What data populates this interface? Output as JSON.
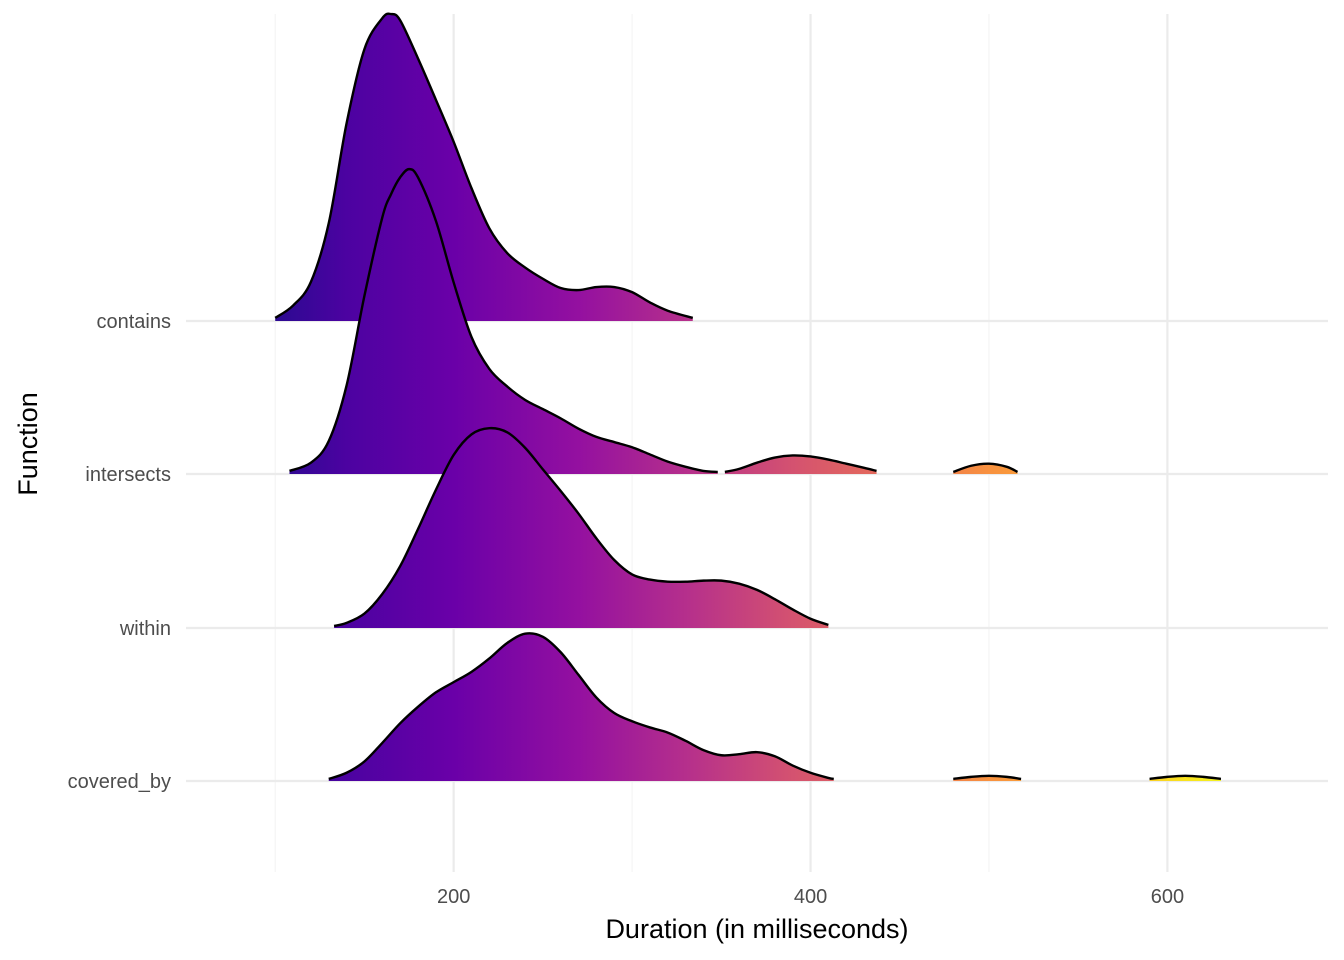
{
  "chart_data": {
    "type": "ridgeline",
    "title": "",
    "xlabel": "Duration (in milliseconds)",
    "ylabel": "Function",
    "xlim": [
      50,
      690
    ],
    "x_ticks": [
      200,
      400,
      600
    ],
    "x_tick_labels": [
      "200",
      "400",
      "600"
    ],
    "x_minor_ticks": [
      100,
      300,
      500
    ],
    "grid": true,
    "legend": "none",
    "fill": "gradient along x (plasma palette)",
    "color_scale": {
      "stops": [
        {
          "x": 100,
          "color": "#2b0a91"
        },
        {
          "x": 140,
          "color": "#4c02a1"
        },
        {
          "x": 200,
          "color": "#6a00a8"
        },
        {
          "x": 270,
          "color": "#9410a0"
        },
        {
          "x": 330,
          "color": "#b52f8c"
        },
        {
          "x": 390,
          "color": "#d45270"
        },
        {
          "x": 450,
          "color": "#e86f56"
        },
        {
          "x": 500,
          "color": "#f8913f"
        },
        {
          "x": 560,
          "color": "#fdb42f"
        },
        {
          "x": 610,
          "color": "#f9e21e"
        },
        {
          "x": 640,
          "color": "#f0f921"
        }
      ]
    },
    "categories": [
      "covered_by",
      "within",
      "intersects",
      "contains"
    ],
    "series": [
      {
        "name": "covered_by",
        "segments": [
          {
            "x": [
              130,
              140,
              150,
              160,
              170,
              180,
              190,
              200,
              210,
              220,
              230,
              240,
              250,
              260,
              270,
              280,
              290,
              300,
              310,
              320,
              330,
              340,
              350,
              360,
              370,
              380,
              390,
              400,
              410,
              413
            ],
            "density": [
              0.02,
              0.08,
              0.19,
              0.37,
              0.56,
              0.72,
              0.86,
              0.96,
              1.06,
              1.19,
              1.34,
              1.43,
              1.4,
              1.25,
              1.03,
              0.81,
              0.66,
              0.58,
              0.52,
              0.47,
              0.39,
              0.3,
              0.25,
              0.26,
              0.28,
              0.24,
              0.15,
              0.08,
              0.03,
              0.02
            ]
          },
          {
            "x": [
              480,
              490,
              500,
              510,
              518
            ],
            "density": [
              0.02,
              0.04,
              0.05,
              0.04,
              0.02
            ]
          },
          {
            "x": [
              590,
              600,
              610,
              620,
              630
            ],
            "density": [
              0.02,
              0.04,
              0.05,
              0.04,
              0.02
            ]
          }
        ]
      },
      {
        "name": "within",
        "segments": [
          {
            "x": [
              133,
              140,
              150,
              160,
              170,
              180,
              190,
              200,
              210,
              220,
              230,
              240,
              250,
              260,
              270,
              280,
              290,
              300,
              310,
              320,
              330,
              340,
              350,
              360,
              370,
              380,
              390,
              400,
              410
            ],
            "density": [
              0.02,
              0.05,
              0.14,
              0.33,
              0.6,
              0.96,
              1.34,
              1.68,
              1.88,
              1.94,
              1.9,
              1.75,
              1.54,
              1.33,
              1.11,
              0.87,
              0.66,
              0.52,
              0.47,
              0.45,
              0.45,
              0.46,
              0.46,
              0.43,
              0.37,
              0.28,
              0.18,
              0.09,
              0.03
            ]
          }
        ]
      },
      {
        "name": "intersects",
        "segments": [
          {
            "x": [
              108,
              120,
              130,
              140,
              150,
              160,
              165,
              170,
              175,
              180,
              190,
              200,
              210,
              220,
              230,
              240,
              250,
              260,
              270,
              280,
              290,
              300,
              310,
              320,
              330,
              340,
              348
            ],
            "density": [
              0.03,
              0.11,
              0.32,
              0.86,
              1.73,
              2.49,
              2.72,
              2.88,
              2.96,
              2.88,
              2.46,
              1.86,
              1.33,
              1.02,
              0.85,
              0.72,
              0.63,
              0.54,
              0.44,
              0.36,
              0.31,
              0.26,
              0.19,
              0.12,
              0.07,
              0.03,
              0.02
            ]
          },
          {
            "x": [
              352,
              360,
              370,
              380,
              390,
              400,
              410,
              420,
              430,
              437
            ],
            "density": [
              0.02,
              0.05,
              0.11,
              0.16,
              0.18,
              0.17,
              0.14,
              0.1,
              0.06,
              0.03
            ]
          },
          {
            "x": [
              480,
              490,
              500,
              510,
              516
            ],
            "density": [
              0.02,
              0.08,
              0.1,
              0.07,
              0.02
            ]
          }
        ]
      },
      {
        "name": "contains",
        "segments": [
          {
            "x": [
              100,
              110,
              120,
              130,
              140,
              150,
              160,
              165,
              170,
              180,
              190,
              200,
              210,
              220,
              230,
              240,
              250,
              260,
              270,
              280,
              290,
              300,
              310,
              320,
              334
            ],
            "density": [
              0.03,
              0.15,
              0.38,
              0.95,
              1.92,
              2.64,
              2.94,
              2.98,
              2.92,
              2.55,
              2.15,
              1.74,
              1.29,
              0.9,
              0.66,
              0.52,
              0.41,
              0.32,
              0.3,
              0.33,
              0.33,
              0.28,
              0.18,
              0.1,
              0.03
            ]
          }
        ]
      }
    ]
  }
}
